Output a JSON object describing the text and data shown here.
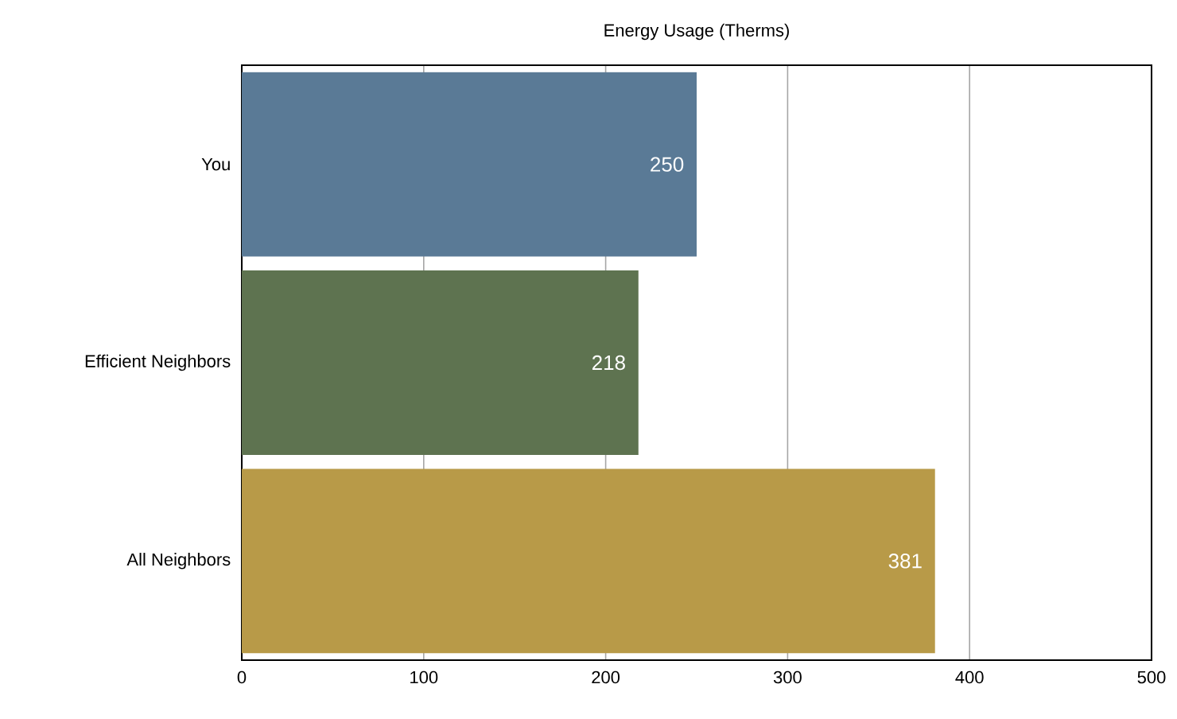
{
  "chart_data": {
    "type": "bar",
    "orientation": "horizontal",
    "title": "Energy Usage (Therms)",
    "categories": [
      "You",
      "Efficient Neighbors",
      "All Neighbors"
    ],
    "values": [
      250,
      218,
      381
    ],
    "colors": [
      "#5a7a96",
      "#5e7350",
      "#b89a48"
    ],
    "xlim": [
      0,
      500
    ],
    "xticks": [
      0,
      100,
      200,
      300,
      400,
      500
    ],
    "grid": "x",
    "data_labels": true
  }
}
